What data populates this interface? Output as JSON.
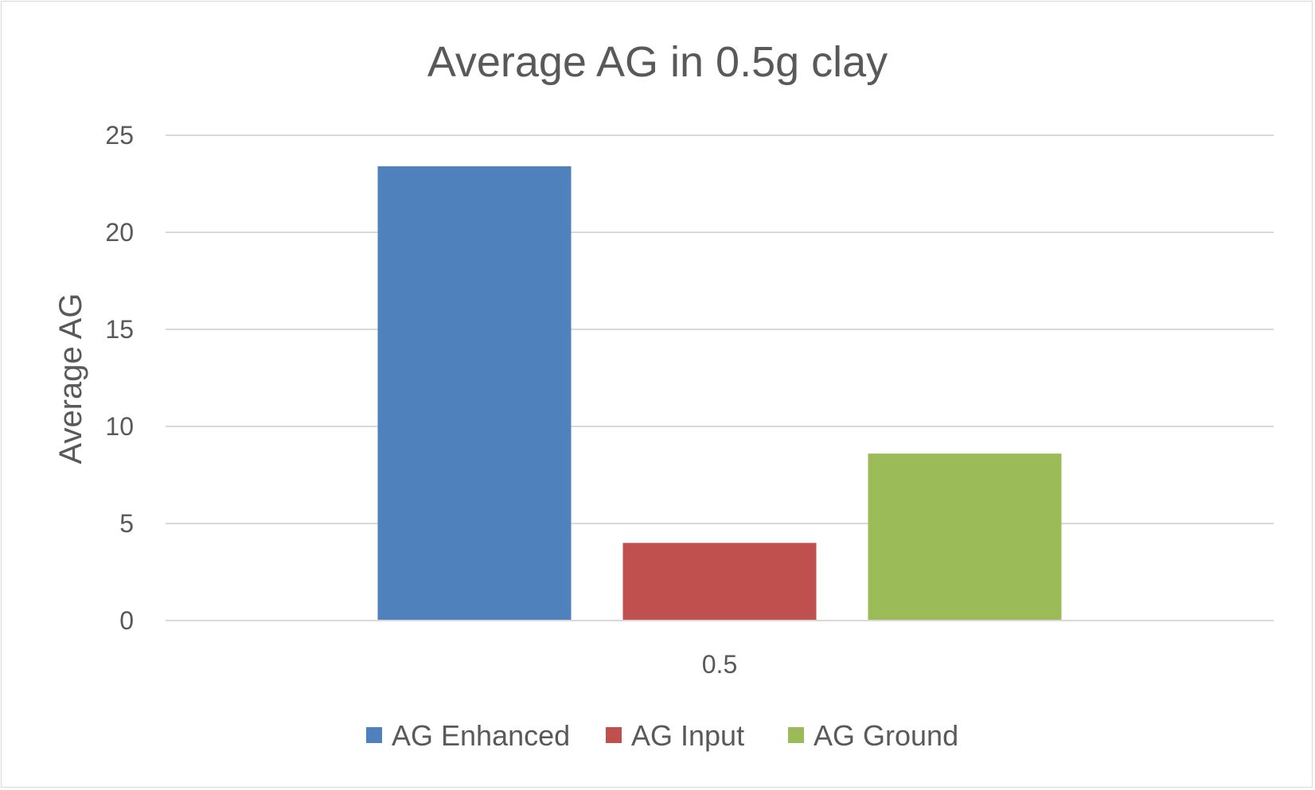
{
  "chart_data": {
    "type": "bar",
    "title": "Average AG in 0.5g clay",
    "xlabel": "",
    "ylabel": "Average AG",
    "categories": [
      "0.5"
    ],
    "series": [
      {
        "name": "AG Enhanced",
        "values": [
          23.4
        ],
        "color": "#4f81bd"
      },
      {
        "name": "AG Input",
        "values": [
          4.0
        ],
        "color": "#c0504d"
      },
      {
        "name": "AG Ground",
        "values": [
          8.6
        ],
        "color": "#9bbb59"
      }
    ],
    "ylim": [
      0,
      25
    ],
    "yticks": [
      0,
      5,
      10,
      15,
      20,
      25
    ],
    "grid": true,
    "legend": "bottom",
    "gridline_color": "#d9d9d9",
    "text_color": "#595959"
  }
}
